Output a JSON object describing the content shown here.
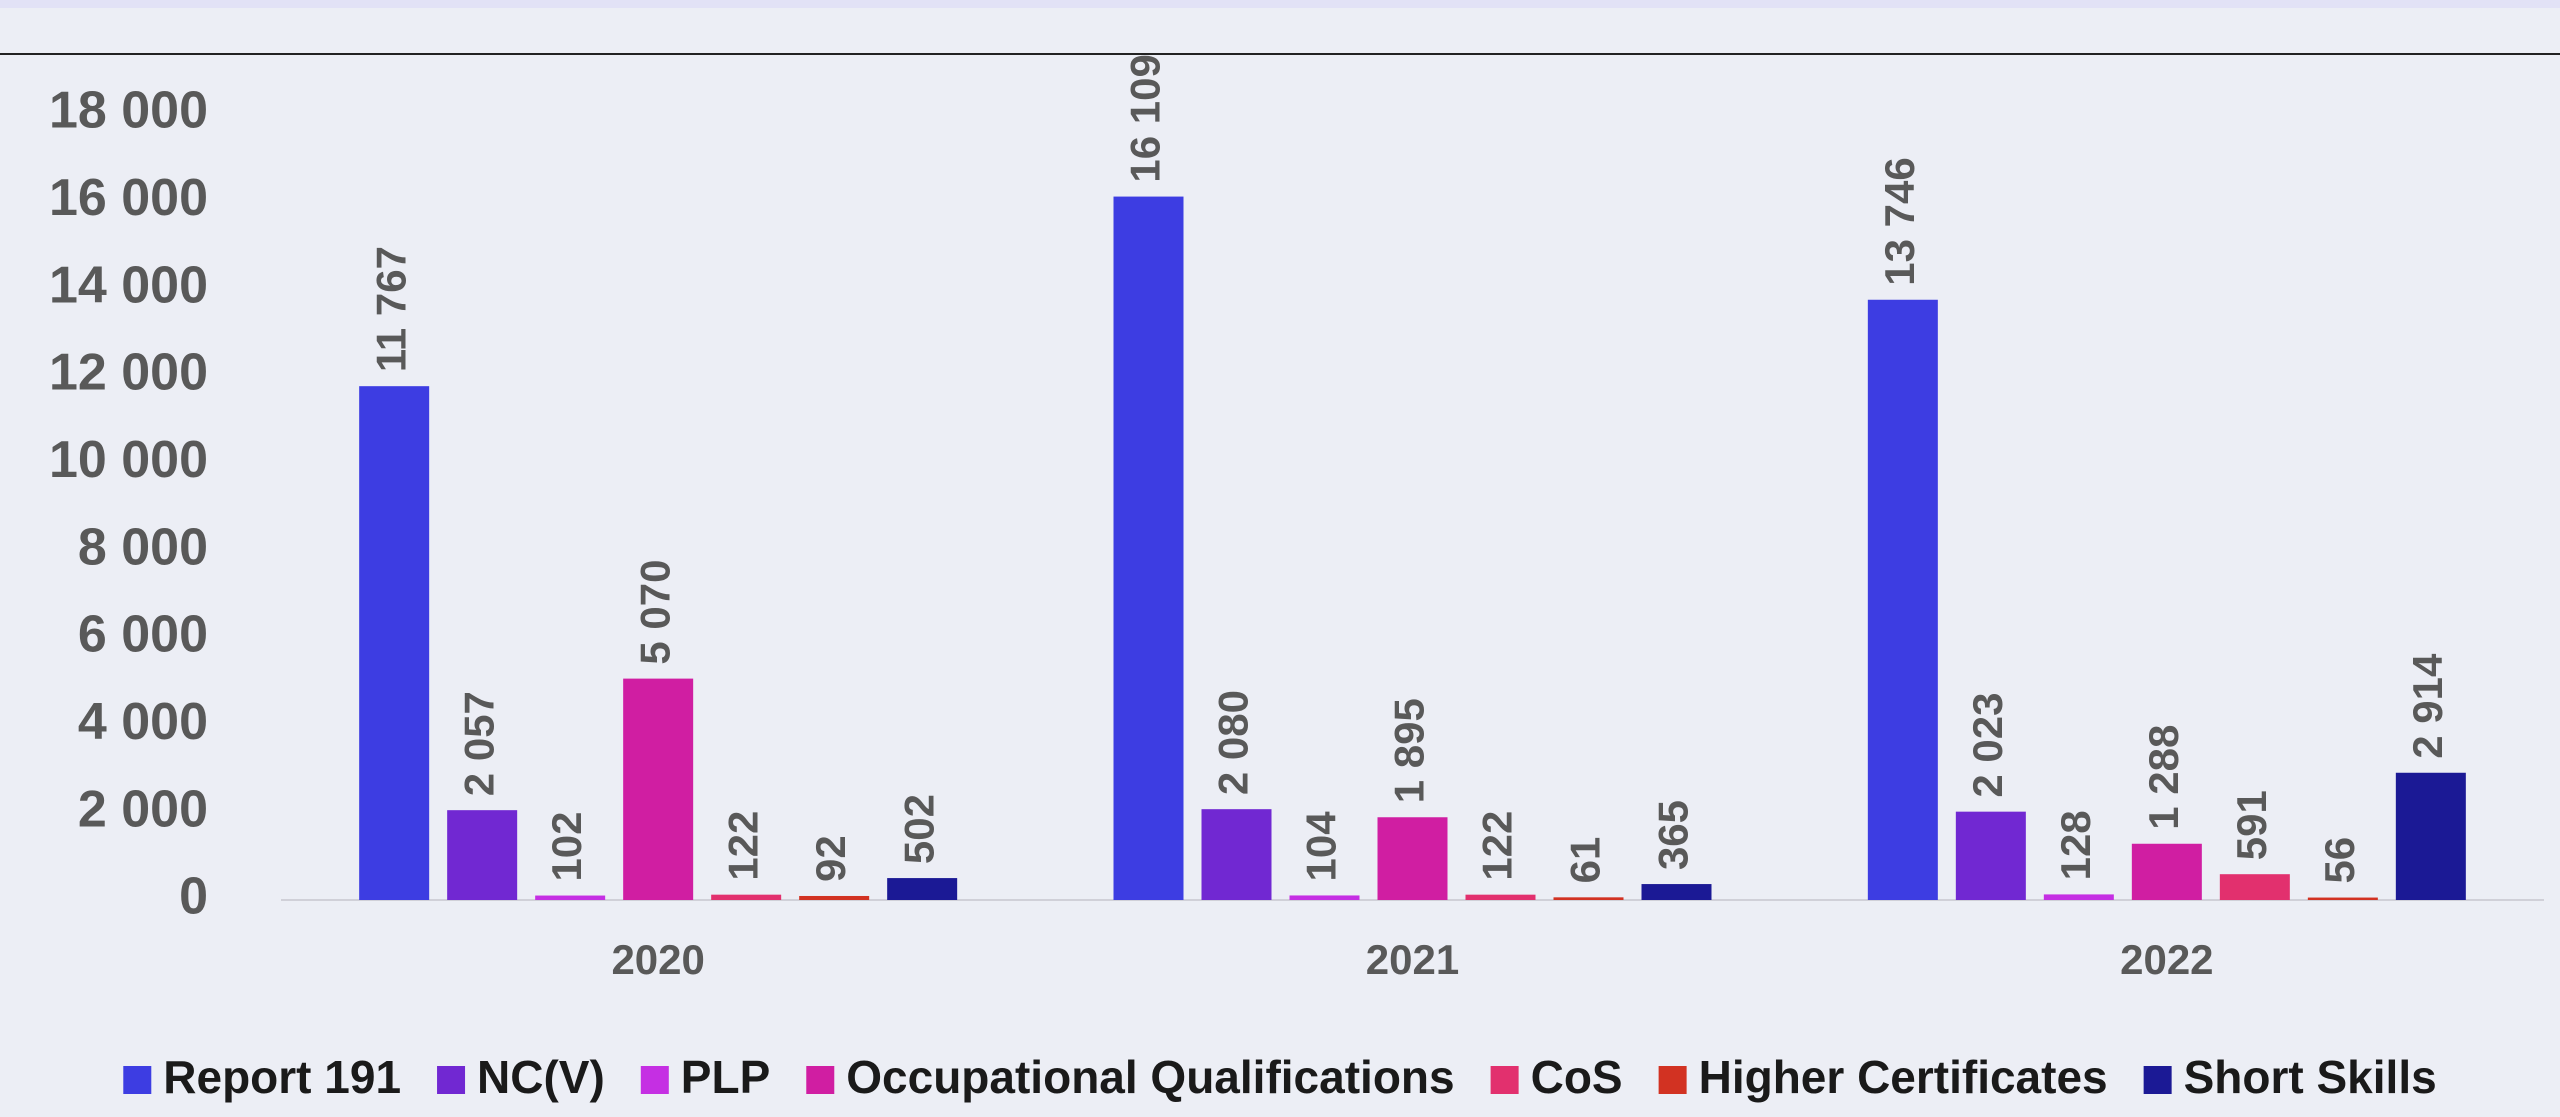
{
  "chart_data": {
    "type": "bar",
    "categories": [
      "2020",
      "2021",
      "2022"
    ],
    "series": [
      {
        "name": "Report 191",
        "color": "#3d3de2",
        "values": [
          11767,
          16109,
          13746
        ],
        "value_labels": [
          "11 767",
          "16 109",
          "13 746"
        ]
      },
      {
        "name": "NC(V)",
        "color": "#7128d2",
        "values": [
          2057,
          2080,
          2023
        ],
        "value_labels": [
          "2 057",
          "2 080",
          "2 023"
        ]
      },
      {
        "name": "PLP",
        "color": "#c52fe3",
        "values": [
          102,
          104,
          128
        ],
        "value_labels": [
          "102",
          "104",
          "128"
        ]
      },
      {
        "name": "Occupational Qualifications",
        "color": "#d01ea2",
        "values": [
          5070,
          1895,
          1288
        ],
        "value_labels": [
          "5 070",
          "1 895",
          "1 288"
        ]
      },
      {
        "name": "CoS",
        "color": "#e2306e",
        "values": [
          122,
          122,
          591
        ],
        "value_labels": [
          "122",
          "122",
          "591"
        ]
      },
      {
        "name": "Higher Certificates",
        "color": "#d23222",
        "values": [
          92,
          61,
          56
        ],
        "value_labels": [
          "92",
          "61",
          "56"
        ]
      },
      {
        "name": "Short Skills",
        "color": "#1b1995",
        "values": [
          502,
          365,
          2914
        ],
        "value_labels": [
          "502",
          "365",
          "2 914"
        ]
      }
    ],
    "ylim": [
      0,
      18000
    ],
    "yticks": [
      {
        "value": 0,
        "label": "0"
      },
      {
        "value": 2000,
        "label": "2 000"
      },
      {
        "value": 4000,
        "label": "4 000"
      },
      {
        "value": 6000,
        "label": "6 000"
      },
      {
        "value": 8000,
        "label": "8 000"
      },
      {
        "value": 10000,
        "label": "10 000"
      },
      {
        "value": 12000,
        "label": "12 000"
      },
      {
        "value": 14000,
        "label": "14 000"
      },
      {
        "value": 16000,
        "label": "16 000"
      },
      {
        "value": 18000,
        "label": "18 000"
      }
    ],
    "grid": false,
    "legend": "bottom"
  }
}
